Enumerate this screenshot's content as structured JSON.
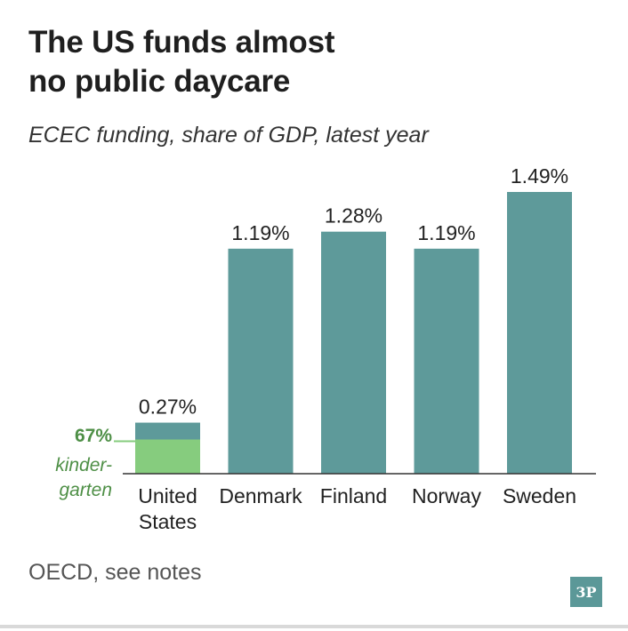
{
  "title_lines": [
    "The US funds almost",
    "no public daycare"
  ],
  "subtitle": "ECEC funding, share of GDP, latest year",
  "source": "OECD, see notes",
  "logo_text": "3P",
  "colors": {
    "bar": "#5e9a9a",
    "highlight": "#86cc7e",
    "highlight_text": "#4e8f46",
    "axis": "#333333"
  },
  "chart_data": {
    "type": "bar",
    "title": "The US funds almost no public daycare",
    "subtitle": "ECEC funding, share of GDP, latest year",
    "categories": [
      [
        "United",
        "States"
      ],
      [
        "Denmark"
      ],
      [
        "Finland"
      ],
      [
        "Norway"
      ],
      [
        "Sweden"
      ]
    ],
    "values": [
      0.27,
      1.19,
      1.28,
      1.19,
      1.49
    ],
    "value_labels": [
      "0.27%",
      "1.19%",
      "1.28%",
      "1.19%",
      "1.49%"
    ],
    "ylim": [
      0,
      1.49
    ],
    "grid": false,
    "annotation": {
      "category_index": 0,
      "share": 0.67,
      "label_value": "67%",
      "label_lines": [
        "kinder-",
        "garten"
      ]
    }
  }
}
